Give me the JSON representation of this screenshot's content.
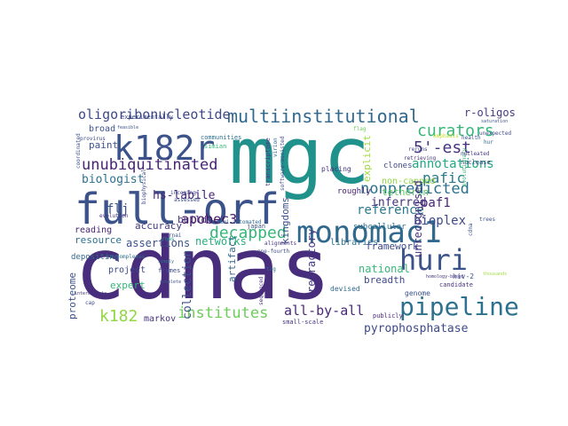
{
  "words": [
    {
      "text": "cdnas",
      "color": "#472d7b"
    },
    {
      "text": "mgc",
      "color": "#21918c"
    },
    {
      "text": "full-orf",
      "color": "#3b528b"
    },
    {
      "text": "monomac1",
      "color": "#31688e"
    },
    {
      "text": "huri",
      "color": "#3b528b"
    },
    {
      "text": "k182r",
      "color": "#3b528b"
    },
    {
      "text": "pipeline",
      "color": "#2c728e"
    },
    {
      "text": "multiinstitutional",
      "color": "#31688e"
    },
    {
      "text": "oligoribonucleotide",
      "color": "#3e4989"
    },
    {
      "text": "unubiquitinated",
      "color": "#482475"
    },
    {
      "text": "decapped",
      "color": "#35b779"
    },
    {
      "text": "nonpredicted",
      "color": "#2c728e"
    },
    {
      "text": "curators",
      "color": "#35b779"
    },
    {
      "text": "5'-est",
      "color": "#46337f"
    },
    {
      "text": "institutes",
      "color": "#6ccd5a"
    },
    {
      "text": "k182",
      "color": "#90d743"
    },
    {
      "text": "annotations",
      "color": "#22a884"
    },
    {
      "text": "pafic",
      "color": "#2a788e"
    },
    {
      "text": "r-oligos",
      "color": "#443983"
    },
    {
      "text": "all-by-all",
      "color": "#482878"
    },
    {
      "text": "flj",
      "color": "#3b528b"
    },
    {
      "text": "apobec3",
      "color": "#471365"
    },
    {
      "text": "reference",
      "color": "#2a788e"
    },
    {
      "text": "pyrophosphatase",
      "color": "#3e4989"
    },
    {
      "text": "bioplex",
      "color": "#3e4989"
    },
    {
      "text": "paf1",
      "color": "#482475"
    },
    {
      "text": "biologist",
      "color": "#2c728e"
    },
    {
      "text": "inferred",
      "color": "#46337f"
    },
    {
      "text": "hs-labile",
      "color": "#482878"
    },
    {
      "text": "paint",
      "color": "#3b528b"
    },
    {
      "text": "broad",
      "color": "#3b528b"
    },
    {
      "text": "explicit",
      "color": "#9fda3a"
    },
    {
      "text": "tetherin",
      "color": "#5ec962"
    },
    {
      "text": "non-capped",
      "color": "#8ed645"
    },
    {
      "text": "unrecognised",
      "color": "#46337f"
    },
    {
      "text": "expert",
      "color": "#35b779"
    },
    {
      "text": "collection",
      "color": "#3b528b"
    },
    {
      "text": "markov",
      "color": "#46337f"
    },
    {
      "text": "accuracy",
      "color": "#443983"
    },
    {
      "text": "build",
      "color": "#46337f"
    },
    {
      "text": "assertions",
      "color": "#3b528b"
    },
    {
      "text": "resource",
      "color": "#2c728e"
    },
    {
      "text": "reading",
      "color": "#482475"
    },
    {
      "text": "networks",
      "color": "#29af7f"
    },
    {
      "text": "artifact",
      "color": "#31688e"
    },
    {
      "text": "kingdoms",
      "color": "#3b528b"
    },
    {
      "text": "refractory",
      "color": "#443983"
    },
    {
      "text": "libraries",
      "color": "#2c728e"
    },
    {
      "text": "framework",
      "color": "#3e4989"
    },
    {
      "text": "national",
      "color": "#35b779"
    },
    {
      "text": "breadth",
      "color": "#3e4989"
    },
    {
      "text": "proteome",
      "color": "#3b528b"
    },
    {
      "text": "project",
      "color": "#3e4989"
    },
    {
      "text": "depositing",
      "color": "#31688e"
    },
    {
      "text": "subcellular",
      "color": "#2c728e"
    },
    {
      "text": "roughly",
      "color": "#482475"
    },
    {
      "text": "clones",
      "color": "#3e4989"
    },
    {
      "text": "placing",
      "color": "#46337f"
    },
    {
      "text": "devised",
      "color": "#31688e"
    },
    {
      "text": "genome",
      "color": "#3b528b"
    },
    {
      "text": "candidate",
      "color": "#46337f"
    },
    {
      "text": "hiv-2",
      "color": "#3b528b"
    },
    {
      "text": "publicly",
      "color": "#482878"
    },
    {
      "text": "small-scale",
      "color": "#46337f"
    },
    {
      "text": "japan",
      "color": "#3b528b"
    },
    {
      "text": "frames",
      "color": "#3e4989"
    },
    {
      "text": "simian",
      "color": "#35b779"
    },
    {
      "text": "communities",
      "color": "#2c728e"
    },
    {
      "text": "experimentally",
      "color": "#3e4989"
    },
    {
      "text": "semi-automated",
      "color": "#31688e"
    },
    {
      "text": "nuclease",
      "color": "#3e4989"
    },
    {
      "text": "sequenced",
      "color": "#482878"
    },
    {
      "text": "alignments",
      "color": "#46337f"
    },
    {
      "text": "incoming",
      "color": "#3e4989"
    },
    {
      "text": "assessed",
      "color": "#3b528b"
    },
    {
      "text": "transcriptome",
      "color": "#443983"
    },
    {
      "text": "software-assisted",
      "color": "#3e4989"
    },
    {
      "text": "trees",
      "color": "#3b528b"
    },
    {
      "text": "provirus",
      "color": "#3e4989"
    },
    {
      "text": "retrieving",
      "color": "#46337f"
    },
    {
      "text": "reruns",
      "color": "#3e4989"
    },
    {
      "text": "evolutionary",
      "color": "#35b779"
    },
    {
      "text": "health",
      "color": "#3b528b"
    },
    {
      "text": "hur",
      "color": "#31688e"
    },
    {
      "text": "saturation",
      "color": "#3b528b"
    },
    {
      "text": "one-fourth",
      "color": "#3e4989"
    },
    {
      "text": "homology-based",
      "color": "#46337f"
    },
    {
      "text": "co-complexes",
      "color": "#2c728e"
    },
    {
      "text": "cdna",
      "color": "#3b528b"
    },
    {
      "text": "emphasis",
      "color": "#bddf26"
    },
    {
      "text": "flag",
      "color": "#6ccd5a"
    },
    {
      "text": "virion",
      "color": "#31688e"
    },
    {
      "text": "rnas",
      "color": "#21918c"
    },
    {
      "text": "unexpected",
      "color": "#3e4989"
    },
    {
      "text": "nucleated",
      "color": "#443983"
    },
    {
      "text": "biophysical",
      "color": "#3e4989"
    },
    {
      "text": "evolution",
      "color": "#46337f"
    },
    {
      "text": "coordinated",
      "color": "#3b528b"
    },
    {
      "text": "complete",
      "color": "#3b528b"
    },
    {
      "text": "simply",
      "color": "#2c728e"
    },
    {
      "text": "cap",
      "color": "#3e4989"
    },
    {
      "text": "rnai",
      "color": "#3b528b"
    },
    {
      "text": "tag",
      "color": "#31688e"
    },
    {
      "text": "feasible",
      "color": "#3b528b"
    },
    {
      "text": "intermediate",
      "color": "#46337f"
    },
    {
      "text": "thousands",
      "color": "#9fda3a"
    }
  ]
}
